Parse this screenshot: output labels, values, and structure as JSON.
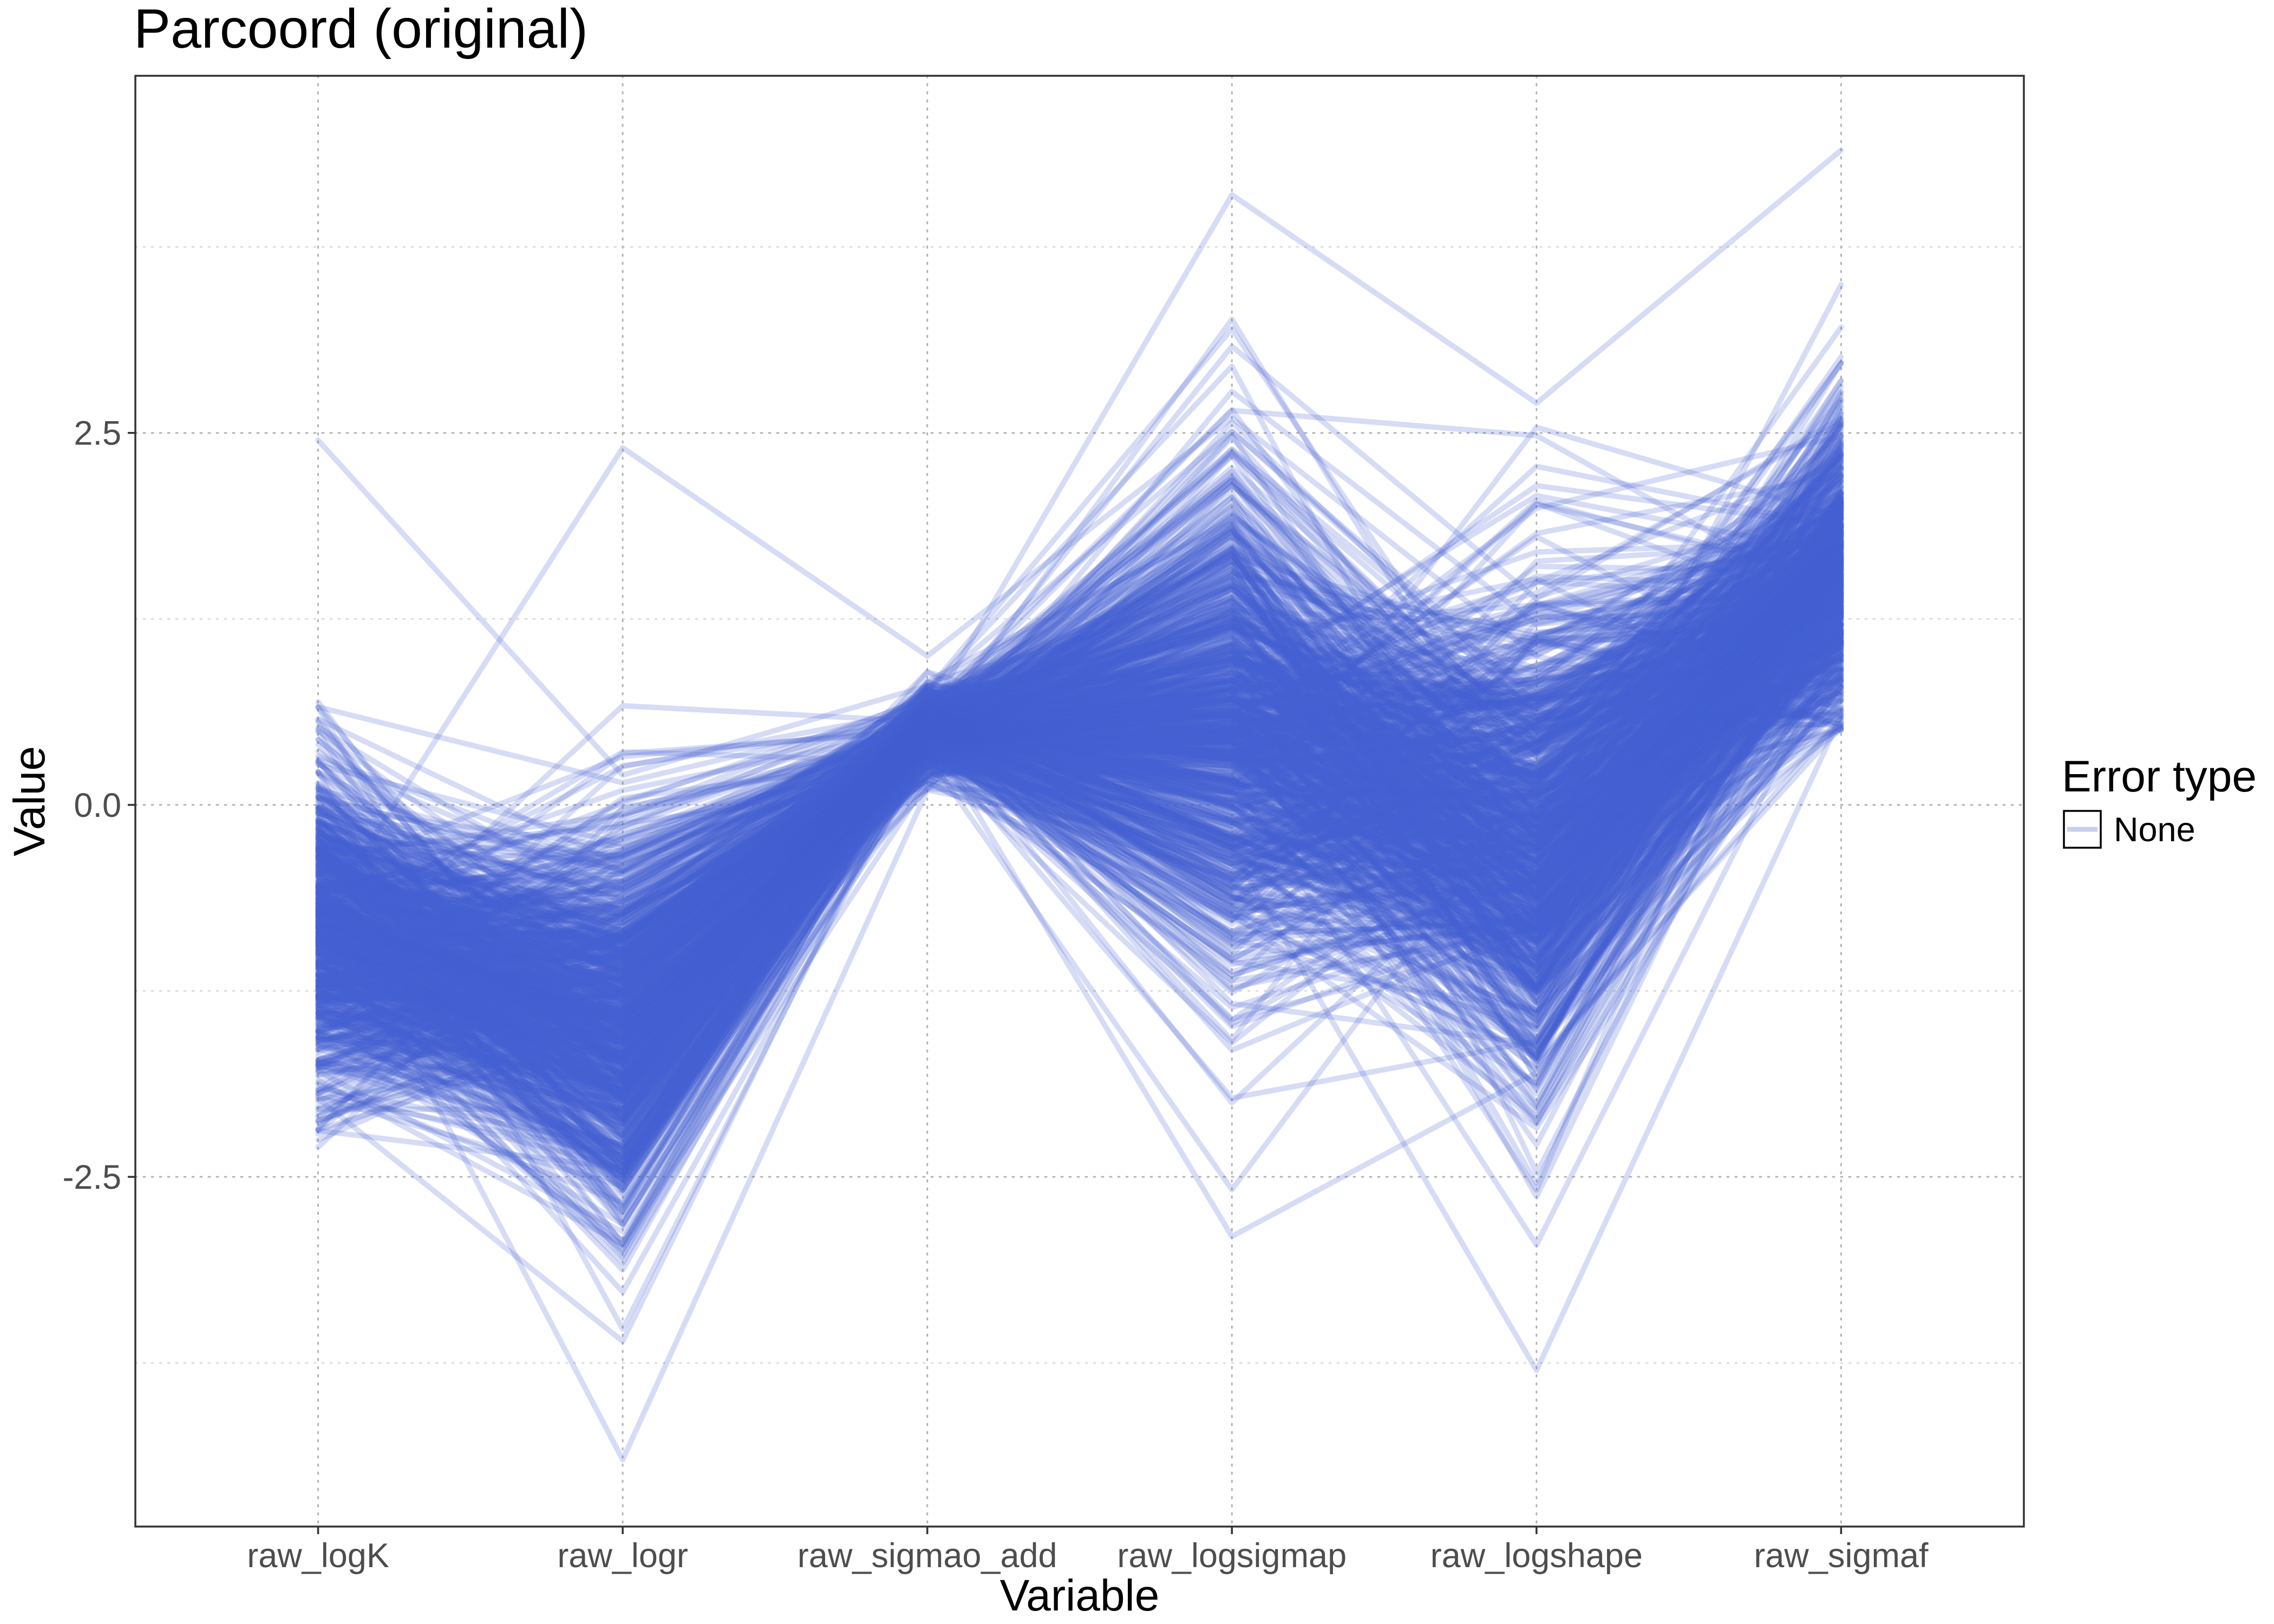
{
  "chart_data": {
    "type": "line",
    "subtype": "parallel-coordinates",
    "title": "Parcoord (original)",
    "xlabel": "Variable",
    "ylabel": "Value",
    "categories": [
      "raw_logK",
      "raw_logr",
      "raw_sigmao_add",
      "raw_logsigmap",
      "raw_logshape",
      "raw_sigmaf"
    ],
    "y_ticks": [
      -2.5,
      0.0,
      2.5
    ],
    "y_tick_labels": [
      "-2.5",
      "0.0",
      "2.5"
    ],
    "ylim": [
      -4.85,
      4.9
    ],
    "grid": true,
    "legend": {
      "title": "Error type",
      "position": "right",
      "entries": [
        {
          "label": "None",
          "color": "#4560d0"
        }
      ]
    },
    "series_color": "#4560d0",
    "series_opacity": 0.22,
    "n_lines_approx": 800,
    "axis_distributions": {
      "raw_logK": {
        "center": -0.85,
        "spread": 0.55,
        "min": -2.3,
        "max": 2.45
      },
      "raw_logr": {
        "center": -1.45,
        "spread": 0.7,
        "min": -4.4,
        "max": 2.4
      },
      "raw_sigmao_add": {
        "center": 0.5,
        "spread": 0.14,
        "min": 0.1,
        "max": 1.17
      },
      "raw_logsigmap": {
        "center": 0.6,
        "spread": 0.85,
        "min": -2.9,
        "max": 4.1
      },
      "raw_logshape": {
        "center": -0.2,
        "spread": 0.85,
        "min": -3.8,
        "max": 2.7
      },
      "raw_sigmaf": {
        "center": 1.55,
        "spread": 0.5,
        "min": 0.5,
        "max": 4.4
      }
    },
    "sample_lines": [
      [
        -2.3,
        -0.4,
        0.35,
        1.5,
        -0.5,
        1.0
      ],
      [
        2.45,
        0.2,
        0.8,
        0.6,
        1.5,
        2.3
      ],
      [
        -0.8,
        2.4,
        1.0,
        2.6,
        1.0,
        2.1
      ],
      [
        -0.5,
        -4.4,
        0.1,
        -0.3,
        -3.8,
        0.6
      ],
      [
        -1.2,
        -1.6,
        0.5,
        -2.9,
        -1.8,
        0.8
      ],
      [
        0.5,
        -1.0,
        0.6,
        4.1,
        2.7,
        4.4
      ]
    ]
  }
}
